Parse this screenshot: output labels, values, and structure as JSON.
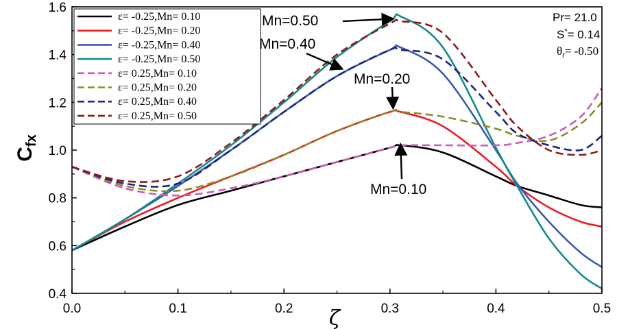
{
  "chart_data": {
    "type": "line",
    "xlabel": "ζ",
    "ylabel_main": "C",
    "ylabel_sub": "fx",
    "xlim": [
      0.0,
      0.5
    ],
    "ylim": [
      0.4,
      1.6
    ],
    "x_ticks": [
      0.0,
      0.1,
      0.2,
      0.3,
      0.4,
      0.5
    ],
    "x_tick_labels": [
      "0.0",
      "0.1",
      "0.2",
      "0.3",
      "0.4",
      "0.5"
    ],
    "y_ticks": [
      0.4,
      0.6,
      0.8,
      1.0,
      1.2,
      1.4,
      1.6
    ],
    "y_tick_labels": [
      "0.4",
      "0.6",
      "0.8",
      "1.0",
      "1.2",
      "1.4",
      "1.6"
    ],
    "x": [
      0.0,
      0.05,
      0.1,
      0.15,
      0.2,
      0.25,
      0.3,
      0.31,
      0.35,
      0.4,
      0.42,
      0.45,
      0.48,
      0.5
    ],
    "series": [
      {
        "name": "ε= -0.25,Mn= 0.10",
        "color": "#000000",
        "dash": "solid",
        "values": [
          0.58,
          0.68,
          0.77,
          0.83,
          0.89,
          0.95,
          1.01,
          1.02,
          0.99,
          0.89,
          0.85,
          0.81,
          0.77,
          0.76
        ]
      },
      {
        "name": "ε= -0.25,Mn= 0.20",
        "color": "#ee1c24",
        "dash": "solid",
        "values": [
          0.58,
          0.7,
          0.8,
          0.89,
          0.98,
          1.08,
          1.16,
          1.16,
          1.1,
          0.93,
          0.85,
          0.76,
          0.7,
          0.68
        ]
      },
      {
        "name": "ε= -0.25,Mn= 0.40",
        "color": "#3c57b0",
        "dash": "solid",
        "values": [
          0.58,
          0.71,
          0.85,
          1.0,
          1.16,
          1.31,
          1.42,
          1.43,
          1.32,
          1.0,
          0.86,
          0.7,
          0.57,
          0.51
        ]
      },
      {
        "name": "ε= -0.25,Mn= 0.50",
        "color": "#148a8a",
        "dash": "solid",
        "values": [
          0.58,
          0.71,
          0.86,
          1.02,
          1.2,
          1.39,
          1.54,
          1.56,
          1.43,
          1.01,
          0.85,
          0.63,
          0.48,
          0.42
        ]
      },
      {
        "name": "ε= 0.25,Mn= 0.10",
        "color": "#cc5ab8",
        "dash": "dashed",
        "values": [
          0.93,
          0.84,
          0.81,
          0.84,
          0.89,
          0.95,
          1.01,
          1.02,
          1.02,
          1.02,
          1.03,
          1.06,
          1.14,
          1.26
        ]
      },
      {
        "name": "ε= 0.25,Mn= 0.20",
        "color": "#8b8b28",
        "dash": "dashed",
        "values": [
          0.93,
          0.85,
          0.83,
          0.89,
          0.98,
          1.08,
          1.16,
          1.16,
          1.14,
          1.09,
          1.06,
          1.04,
          1.11,
          1.2
        ]
      },
      {
        "name": "ε= 0.25,Mn= 0.40",
        "color": "#1a237e",
        "dash": "dashed",
        "values": [
          0.93,
          0.86,
          0.86,
          1.0,
          1.16,
          1.31,
          1.42,
          1.42,
          1.38,
          1.16,
          1.07,
          1.02,
          1.0,
          1.06
        ]
      },
      {
        "name": "ε= 0.25,Mn= 0.50",
        "color": "#8b1a1a",
        "dash": "dashed",
        "values": [
          0.93,
          0.87,
          0.89,
          1.03,
          1.21,
          1.4,
          1.53,
          1.54,
          1.49,
          1.21,
          1.1,
          1.0,
          0.98,
          1.0
        ]
      }
    ],
    "annotations": [
      {
        "text": "Mn=0.50",
        "target": [
          0.303,
          1.55
        ]
      },
      {
        "text": "Mn=0.40",
        "target": [
          0.255,
          1.34
        ]
      },
      {
        "text": "Mn=0.20",
        "target": [
          0.303,
          1.175
        ]
      },
      {
        "text": "Mn=0.10",
        "target": [
          0.31,
          1.025
        ]
      }
    ],
    "params": {
      "pr": "Pr= 21.0",
      "s_main": "S",
      "s_sup": "*",
      "s_val": "= 0.14",
      "theta_main": "θ",
      "theta_sub": "r",
      "theta_val": "= -0.50"
    },
    "legend_position": "top-left",
    "grid": false
  }
}
